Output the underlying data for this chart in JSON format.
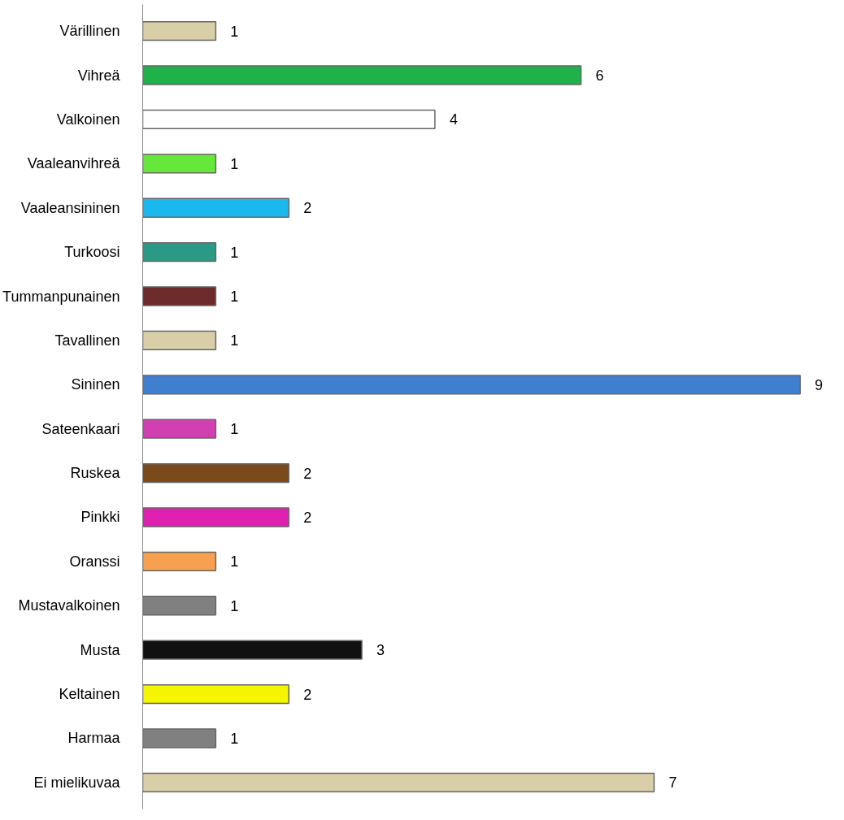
{
  "chart_data": {
    "type": "bar",
    "orientation": "horizontal",
    "data_labels": true,
    "categories": [
      "Värillinen",
      "Vihreä",
      "Valkoinen",
      "Vaaleanvihreä",
      "Vaaleansininen",
      "Turkoosi",
      "Tummanpunainen",
      "Tavallinen",
      "Sininen",
      "Sateenkaari",
      "Ruskea",
      "Pinkki",
      "Oranssi",
      "Mustavalkoinen",
      "Musta",
      "Keltainen",
      "Harmaa",
      "Ei mielikuvaa"
    ],
    "values": [
      1,
      6,
      4,
      1,
      2,
      1,
      1,
      1,
      9,
      1,
      2,
      2,
      1,
      1,
      3,
      2,
      1,
      7
    ],
    "colors": [
      "#d8cfa8",
      "#1fb24a",
      "#ffffff",
      "#66e83a",
      "#1ab8ef",
      "#2a9a86",
      "#6e2b2b",
      "#d8cfa8",
      "#3f7fcf",
      "#d040b0",
      "#7a4a1a",
      "#e020b0",
      "#f6a050",
      "#808080",
      "#111111",
      "#f5f500",
      "#808080",
      "#d8cfa8"
    ]
  }
}
